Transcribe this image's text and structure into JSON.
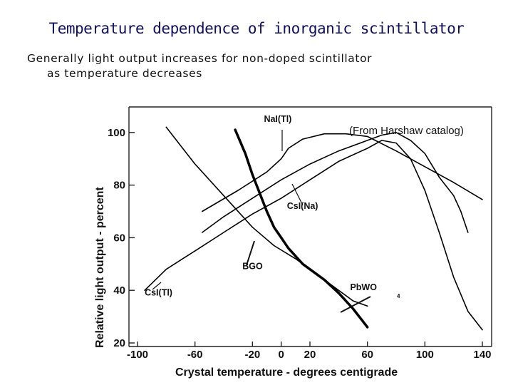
{
  "heading": "Temperature dependence of inorganic scintillator",
  "note_line1": "Generally light output increases for non-doped scintillator",
  "note_line2": "as temperature decreases",
  "chart_data": {
    "type": "line",
    "title": "(From Harshaw catalog)",
    "xlabel": "Crystal temperature - degrees centigrade",
    "ylabel": "Relative light output - percent",
    "xlim": [
      -100,
      140
    ],
    "ylim": [
      20,
      107
    ],
    "x_ticks": [
      -100,
      -60,
      -20,
      0,
      20,
      60,
      100,
      140
    ],
    "x_tick_labels": [
      "-100",
      "-60",
      "-20",
      "0",
      "20",
      "60",
      "100",
      "140"
    ],
    "y_ticks": [
      20,
      40,
      60,
      80,
      100
    ],
    "y_tick_labels": [
      "20",
      "40",
      "60",
      "80",
      "100"
    ],
    "series": [
      {
        "name": "NaI(Tl)",
        "color": "#000000",
        "width": 1.6,
        "points": [
          [
            -55,
            70
          ],
          [
            -30,
            78
          ],
          [
            -10,
            85
          ],
          [
            0,
            90
          ],
          [
            5,
            94
          ],
          [
            15,
            97.5
          ],
          [
            30,
            99.5
          ],
          [
            45,
            99.5
          ],
          [
            60,
            98.5
          ],
          [
            80,
            93
          ],
          [
            100,
            87
          ],
          [
            120,
            81
          ],
          [
            140,
            74.5
          ]
        ]
      },
      {
        "name": "CsI(Na)",
        "color": "#000000",
        "width": 1.6,
        "points": [
          [
            -55,
            62
          ],
          [
            -40,
            68
          ],
          [
            -20,
            75
          ],
          [
            0,
            82
          ],
          [
            20,
            88
          ],
          [
            40,
            93
          ],
          [
            60,
            97
          ],
          [
            70,
            99
          ],
          [
            80,
            100
          ],
          [
            90,
            97
          ],
          [
            100,
            92
          ],
          [
            110,
            83
          ],
          [
            120,
            76
          ],
          [
            125,
            70
          ],
          [
            130,
            62
          ]
        ]
      },
      {
        "name": "CsI(Tl)",
        "color": "#000000",
        "width": 1.6,
        "points": [
          [
            -95,
            40
          ],
          [
            -80,
            48
          ],
          [
            -60,
            55
          ],
          [
            -40,
            62
          ],
          [
            -20,
            69
          ],
          [
            0,
            75
          ],
          [
            20,
            82
          ],
          [
            40,
            89
          ],
          [
            60,
            94
          ],
          [
            70,
            97
          ],
          [
            80,
            96
          ],
          [
            90,
            90
          ],
          [
            100,
            78
          ],
          [
            110,
            62
          ],
          [
            120,
            45
          ],
          [
            130,
            32
          ],
          [
            140,
            25
          ]
        ]
      },
      {
        "name": "BGO",
        "color": "#000000",
        "width": 1.6,
        "points": [
          [
            -80,
            102
          ],
          [
            -60,
            88
          ],
          [
            -40,
            76
          ],
          [
            -20,
            64
          ],
          [
            -5,
            57
          ],
          [
            10,
            52
          ],
          [
            20,
            48
          ],
          [
            30,
            44
          ],
          [
            40,
            40
          ],
          [
            50,
            36
          ],
          [
            60,
            34
          ]
        ]
      },
      {
        "name": "PbWO4",
        "color": "#000000",
        "width": 3.5,
        "points": [
          [
            -32,
            101
          ],
          [
            -25,
            92
          ],
          [
            -20,
            84
          ],
          [
            -15,
            77
          ],
          [
            -10,
            70
          ],
          [
            -5,
            64
          ],
          [
            0,
            60
          ],
          [
            5,
            56
          ],
          [
            10,
            53
          ],
          [
            15,
            50
          ],
          [
            20,
            48
          ],
          [
            30,
            44
          ],
          [
            40,
            39
          ],
          [
            50,
            33
          ],
          [
            60,
            26
          ]
        ]
      }
    ],
    "annotations": [
      {
        "text": "NaI(Tl)",
        "x": -12,
        "y": 104
      },
      {
        "text": "CsI(Na)",
        "x": 4,
        "y": 71
      },
      {
        "text": "CsI(Tl)",
        "x": -95,
        "y": 38
      },
      {
        "text": "BGO",
        "x": -27,
        "y": 48
      },
      {
        "text": "PbWO",
        "x": 48,
        "y": 40
      }
    ]
  }
}
